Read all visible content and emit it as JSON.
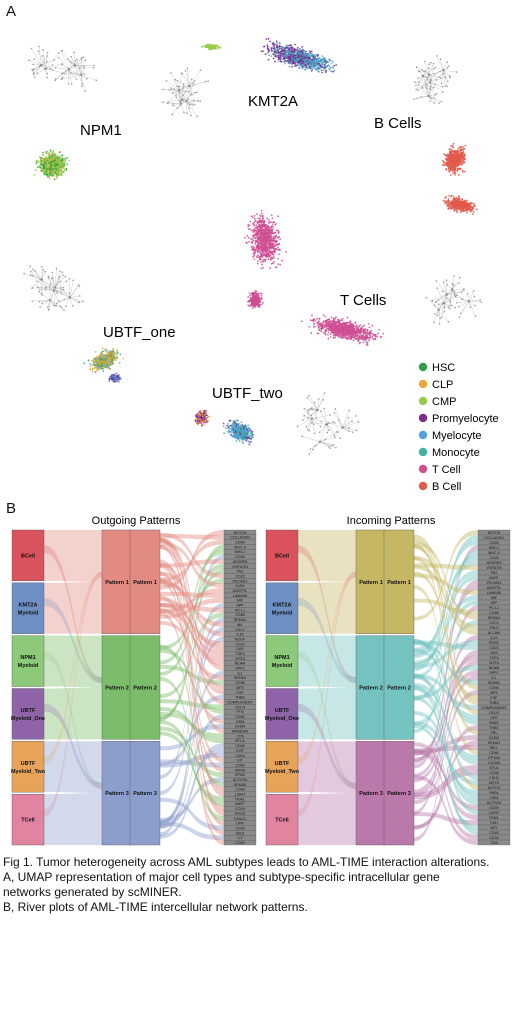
{
  "panel_a": {
    "letter": "A",
    "cluster_labels": {
      "npm1": "NPM1",
      "kmt2a": "KMT2A",
      "b_cells": "B Cells",
      "t_cells": "T Cells",
      "ubtf_one": "UBTF_one",
      "ubtf_two": "UBTF_two"
    },
    "legend": [
      {
        "label": "HSC",
        "color": "#2e9e48"
      },
      {
        "label": "CLP",
        "color": "#e8a93a"
      },
      {
        "label": "CMP",
        "color": "#98c94a"
      },
      {
        "label": "Promyelocyte",
        "color": "#7b2c8f"
      },
      {
        "label": "Myelocyte",
        "color": "#4fa3d9"
      },
      {
        "label": "Monocyte",
        "color": "#3fb0a2"
      },
      {
        "label": "T Cell",
        "color": "#cf4f93"
      },
      {
        "label": "B Cell",
        "color": "#e2584a"
      }
    ]
  },
  "panel_b": {
    "letter": "B",
    "outgoing_title": "Outgoing Patterns",
    "incoming_title": "Incoming Patterns",
    "cell_groups": [
      {
        "label": "BCell",
        "color": "#d9525d"
      },
      {
        "label": "KMT2A Myeloid",
        "color": "#6d8fc4"
      },
      {
        "label": "NPM1 Myeloid",
        "color": "#8cc97a"
      },
      {
        "label": "UBTF Myeloid_One",
        "color": "#8e63a8"
      },
      {
        "label": "UBTF Myeloid_Two",
        "color": "#e8a35a"
      },
      {
        "label": "TCell",
        "color": "#e0849f"
      }
    ],
    "outgoing_patterns": [
      {
        "label": "Pattern 1",
        "color": "#e28b82"
      },
      {
        "label": "Pattern 2",
        "color": "#7cbd6b"
      },
      {
        "label": "Pattern 3",
        "color": "#8c9fcc"
      }
    ],
    "incoming_patterns": [
      {
        "label": "Pattern 1",
        "color": "#c5b763"
      },
      {
        "label": "Pattern 2",
        "color": "#74c3c0"
      },
      {
        "label": "Pattern 3",
        "color": "#b979aa"
      }
    ],
    "outgoing_signals": [
      "NOTCH",
      "COLLAGEN",
      "CD99",
      "MHC-II",
      "MHC-I",
      "CD45",
      "ADGRE5",
      "VISFATIN",
      "FN1",
      "CD22",
      "PECAM1",
      "ICAM",
      "ANGPTL",
      "LAMININ",
      "MIF",
      "APP",
      "PD-L1",
      "CD86",
      "SEMA4",
      "MK",
      "CXCL",
      "IL16",
      "PDGF",
      "CD23",
      "GAS",
      "TGFb",
      "VISTA",
      "NCAM",
      "SPP1",
      "IL1",
      "SEMA4",
      "CD96",
      "MPZ",
      "FGF",
      "THBS",
      "COMPLEMENT",
      "OCLN",
      "PTN",
      "CD40",
      "OSM",
      "CADM",
      "ANNEXIN",
      "CD6",
      "BTLA",
      "CD46",
      "EGF",
      "CDH1",
      "KIT",
      "CD80",
      "NRXN",
      "EPHA",
      "ACTIVIN",
      "SEMA5",
      "CD48",
      "LIGHT",
      "TRAIL",
      "BAFF",
      "CD39",
      "PROS",
      "FASLG",
      "LIFR",
      "CD34",
      "SELE",
      "IL2",
      "CD80"
    ],
    "incoming_signals": [
      "NOTCH",
      "COLLAGEN",
      "CD99",
      "MHC-I",
      "MHC-II",
      "CD45",
      "ADGRE5",
      "VISFATIN",
      "FN1",
      "BAFF",
      "PECAM1",
      "ANGPTL",
      "LAMININ",
      "MIF",
      "APP",
      "PD-L1",
      "CD86",
      "SEMA4",
      "CXCL",
      "IFN-II",
      "ALCAM",
      "IL16",
      "PDGF",
      "CD23",
      "GAS",
      "TGFb",
      "VISTA",
      "NCAM",
      "SPP1",
      "IL1",
      "SEMA4",
      "CD96",
      "MPZ",
      "FGF",
      "THBS",
      "COMPLEMENT",
      "OCLN",
      "LIFR",
      "SNAP",
      "THBS",
      "PRL",
      "CADM",
      "SEMA3",
      "SELL",
      "CD80",
      "GP1BA",
      "L1CAM",
      "BTLA",
      "CD46",
      "CDH1",
      "MSTN",
      "NOTCH",
      "PARs",
      "OSM",
      "ACTIVIN",
      "CD39",
      "LIGHT",
      "TRAIL",
      "CDH",
      "NPY",
      "CD40",
      "CD34",
      "CD6"
    ]
  },
  "caption": {
    "line1": "Fig 1. Tumor heterogeneity across AML subtypes leads to AML-TIME interaction alterations.",
    "line2": "A, UMAP representation of major cell types and subtype-specific intracellular gene",
    "line3": "networks generated by scMINER.",
    "line4": "B, River plots of AML-TIME intercellular network patterns."
  }
}
